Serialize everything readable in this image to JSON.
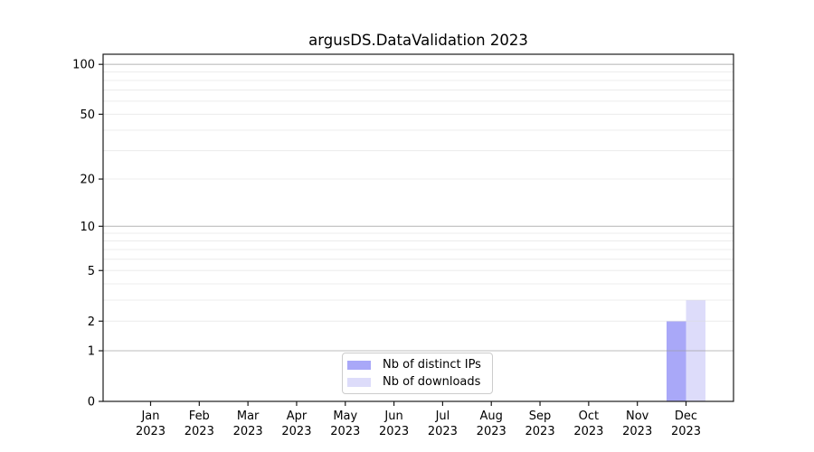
{
  "chart_data": {
    "type": "bar",
    "title": "argusDS.DataValidation 2023",
    "categories": [
      [
        "Jan",
        "2023"
      ],
      [
        "Feb",
        "2023"
      ],
      [
        "Mar",
        "2023"
      ],
      [
        "Apr",
        "2023"
      ],
      [
        "May",
        "2023"
      ],
      [
        "Jun",
        "2023"
      ],
      [
        "Jul",
        "2023"
      ],
      [
        "Aug",
        "2023"
      ],
      [
        "Sep",
        "2023"
      ],
      [
        "Oct",
        "2023"
      ],
      [
        "Nov",
        "2023"
      ],
      [
        "Dec",
        "2023"
      ]
    ],
    "series": [
      {
        "name": "Nb of distinct IPs",
        "color": "#a9a8f8",
        "values": [
          0,
          0,
          0,
          0,
          0,
          0,
          0,
          0,
          0,
          0,
          0,
          2
        ]
      },
      {
        "name": "Nb of downloads",
        "color": "#dddcfa",
        "values": [
          0,
          0,
          0,
          0,
          0,
          0,
          0,
          0,
          0,
          0,
          0,
          3
        ]
      }
    ],
    "xlabel": "",
    "ylabel": "",
    "yscale": "log1p",
    "ylim": [
      0,
      115
    ],
    "yticks": [
      0,
      1,
      2,
      5,
      10,
      20,
      50,
      100
    ],
    "grid_major": [
      1,
      10,
      100
    ],
    "grid_minor": [
      2,
      3,
      4,
      5,
      6,
      7,
      8,
      9,
      20,
      30,
      40,
      50,
      60,
      70,
      80,
      90
    ],
    "legend": {
      "position": "lower center",
      "entries": [
        "Nb of distinct IPs",
        "Nb of downloads"
      ]
    },
    "colors": {
      "grid_major": "#9a9a9a",
      "grid_minor": "#dcdcdc",
      "spine": "#1a1a1a",
      "text": "#000000",
      "legend_border": "#cccccc"
    }
  }
}
